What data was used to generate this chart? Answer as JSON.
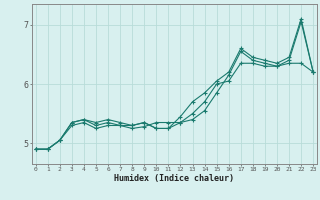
{
  "xlabel": "Humidex (Indice chaleur)",
  "ylabel": "",
  "background_color": "#d8f0ef",
  "grid_color": "#b8dcd9",
  "line_color": "#1a7a6e",
  "x_ticks": [
    0,
    1,
    2,
    3,
    4,
    5,
    6,
    7,
    8,
    9,
    10,
    11,
    12,
    13,
    14,
    15,
    16,
    17,
    18,
    19,
    20,
    21,
    22,
    23
  ],
  "y_ticks": [
    5,
    6,
    7
  ],
  "xlim": [
    -0.3,
    23.3
  ],
  "ylim": [
    4.65,
    7.35
  ],
  "series": {
    "line1": {
      "x": [
        0,
        1,
        2,
        3,
        4,
        5,
        6,
        7,
        8,
        9,
        10,
        11,
        12,
        13,
        14,
        15,
        16,
        17,
        18,
        19,
        20,
        21,
        22,
        23
      ],
      "y": [
        4.9,
        4.9,
        5.05,
        5.3,
        5.35,
        5.25,
        5.3,
        5.3,
        5.3,
        5.35,
        5.25,
        5.25,
        5.35,
        5.5,
        5.7,
        6.0,
        6.05,
        6.35,
        6.35,
        6.3,
        6.3,
        6.35,
        6.35,
        6.2
      ]
    },
    "line2": {
      "x": [
        0,
        1,
        2,
        3,
        4,
        5,
        6,
        7,
        8,
        9,
        10,
        11,
        12,
        13,
        14,
        15,
        16,
        17,
        18,
        19,
        20,
        21,
        22,
        23
      ],
      "y": [
        4.9,
        4.9,
        5.05,
        5.35,
        5.4,
        5.35,
        5.4,
        5.35,
        5.3,
        5.35,
        5.25,
        5.25,
        5.45,
        5.7,
        5.85,
        6.05,
        6.2,
        6.6,
        6.45,
        6.4,
        6.35,
        6.45,
        7.1,
        6.2
      ]
    },
    "line3": {
      "x": [
        0,
        1,
        2,
        3,
        4,
        5,
        6,
        7,
        8,
        9,
        10,
        11,
        12,
        13,
        14,
        15,
        16,
        17,
        18,
        19,
        20,
        21,
        22,
        23
      ],
      "y": [
        4.9,
        4.9,
        5.05,
        5.35,
        5.4,
        5.3,
        5.35,
        5.3,
        5.25,
        5.28,
        5.35,
        5.35,
        5.35,
        5.4,
        5.55,
        5.85,
        6.15,
        6.55,
        6.4,
        6.35,
        6.3,
        6.4,
        7.05,
        6.2
      ]
    }
  }
}
